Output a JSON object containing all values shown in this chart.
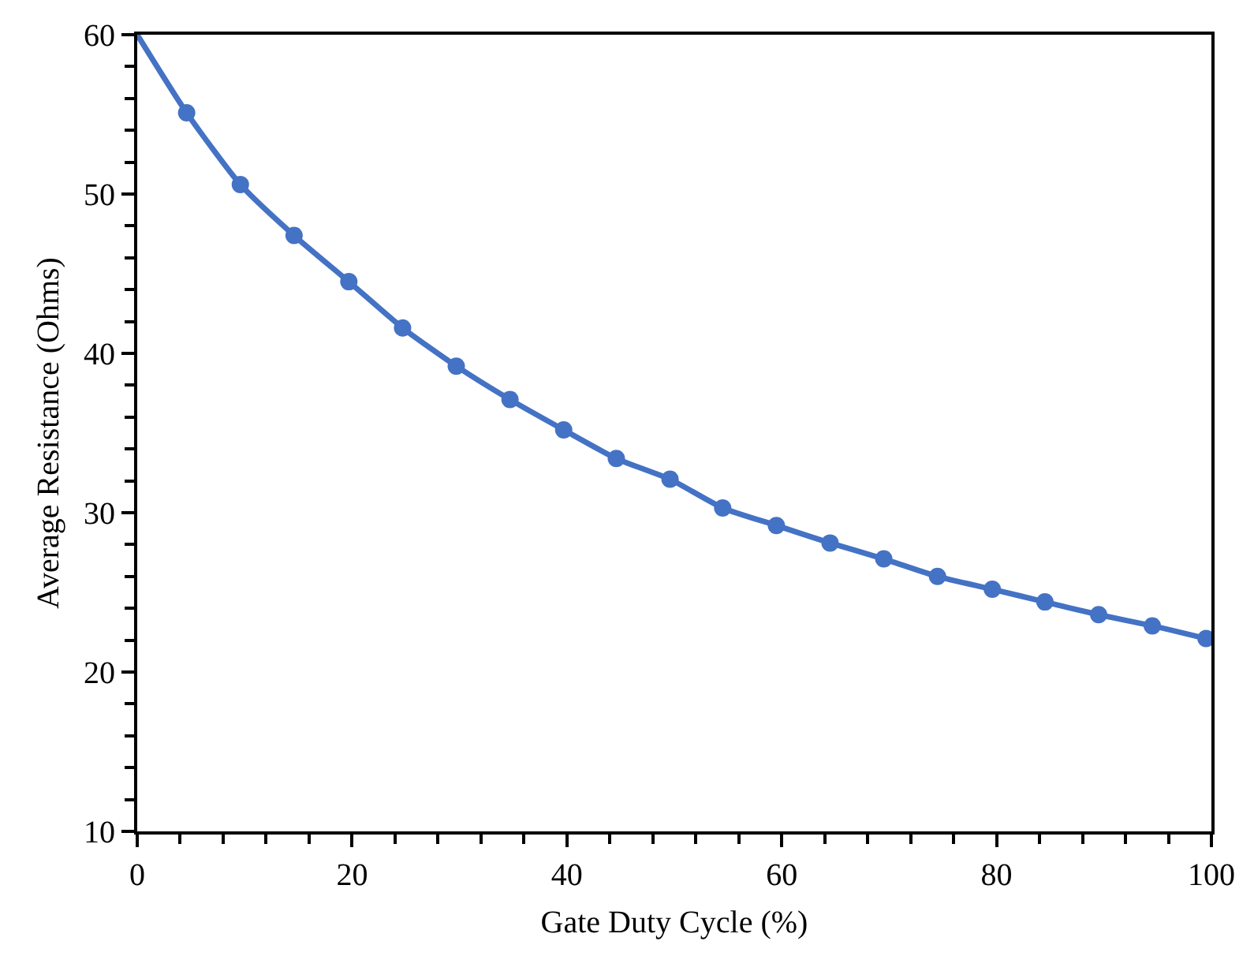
{
  "chart_data": {
    "type": "scatter",
    "xlabel": "Gate Duty Cycle (%)",
    "ylabel": "Average Resistance (Ohms)",
    "xlim": [
      0,
      100
    ],
    "xticks": [
      0,
      20,
      40,
      60,
      80,
      100
    ],
    "ylim": [
      10,
      60
    ],
    "yticks": [
      10,
      20,
      30,
      40,
      50,
      60
    ],
    "grid": false,
    "marker": "circle",
    "series": [
      {
        "type": "line",
        "marker": "none",
        "line_style": "solid",
        "color": "#4472c4",
        "x": [
          0,
          4.6,
          9.6,
          14.6,
          19.7,
          24.7,
          29.7,
          34.7,
          39.7,
          44.6,
          49.6,
          54.5,
          59.5,
          64.5,
          69.5,
          74.5,
          79.6,
          84.5,
          89.5,
          94.5,
          99.5
        ],
        "values": [
          60,
          55.1,
          50.6,
          47.4,
          44.5,
          41.6,
          39.2,
          37.1,
          35.2,
          33.4,
          32.1,
          30.3,
          29.2,
          28.1,
          27.1,
          26.0,
          25.2,
          24.4,
          23.6,
          22.9,
          22.1
        ]
      },
      {
        "color": "#4472c4",
        "x": [
          4.6,
          9.6,
          14.6,
          19.7,
          24.7,
          29.7,
          34.7,
          39.7,
          44.6,
          49.6,
          54.5,
          59.5,
          64.5,
          69.5,
          74.5,
          79.6,
          84.5,
          89.5,
          94.5,
          99.5
        ],
        "values": [
          55.1,
          50.6,
          47.4,
          44.5,
          41.6,
          39.2,
          37.1,
          35.2,
          33.4,
          32.1,
          30.3,
          29.2,
          28.1,
          27.1,
          26.0,
          25.2,
          24.4,
          23.6,
          22.9,
          22.1
        ]
      }
    ]
  }
}
